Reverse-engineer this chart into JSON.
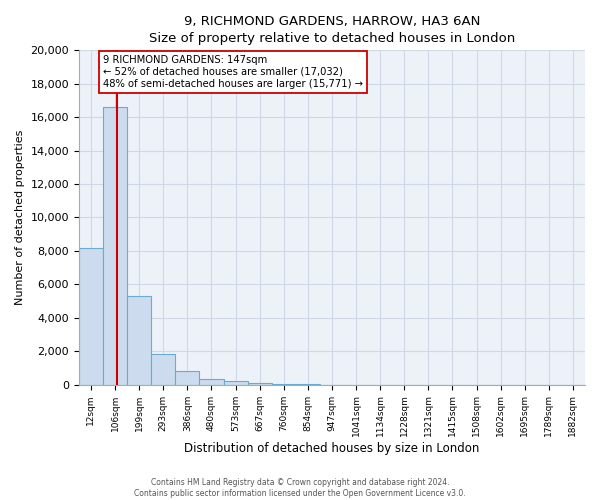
{
  "title": "9, RICHMOND GARDENS, HARROW, HA3 6AN",
  "subtitle": "Size of property relative to detached houses in London",
  "xlabel": "Distribution of detached houses by size in London",
  "ylabel": "Number of detached properties",
  "bar_color": "#ccdcee",
  "bar_edge_color": "#6aaad4",
  "background_color": "#edf2f9",
  "grid_color": "#d0d8e8",
  "annotation_line_color": "#cc0000",
  "annotation_box_edge": "#cc0000",
  "categories": [
    "12sqm",
    "106sqm",
    "199sqm",
    "293sqm",
    "386sqm",
    "480sqm",
    "573sqm",
    "667sqm",
    "760sqm",
    "854sqm",
    "947sqm",
    "1041sqm",
    "1134sqm",
    "1228sqm",
    "1321sqm",
    "1415sqm",
    "1508sqm",
    "1602sqm",
    "1695sqm",
    "1789sqm",
    "1882sqm"
  ],
  "values": [
    8200,
    16600,
    5300,
    1850,
    800,
    350,
    200,
    100,
    50,
    20,
    5,
    2,
    1,
    1,
    0,
    0,
    0,
    0,
    0,
    0,
    0
  ],
  "ylim": [
    0,
    20000
  ],
  "yticks": [
    0,
    2000,
    4000,
    6000,
    8000,
    10000,
    12000,
    14000,
    16000,
    18000,
    20000
  ],
  "property_size": "147sqm",
  "property_name": "9 RICHMOND GARDENS",
  "pct_smaller": 52,
  "count_smaller": 17032,
  "pct_larger": 48,
  "count_larger": 15771,
  "red_line_x": 1.08,
  "footer_line1": "Contains HM Land Registry data © Crown copyright and database right 2024.",
  "footer_line2": "Contains public sector information licensed under the Open Government Licence v3.0."
}
